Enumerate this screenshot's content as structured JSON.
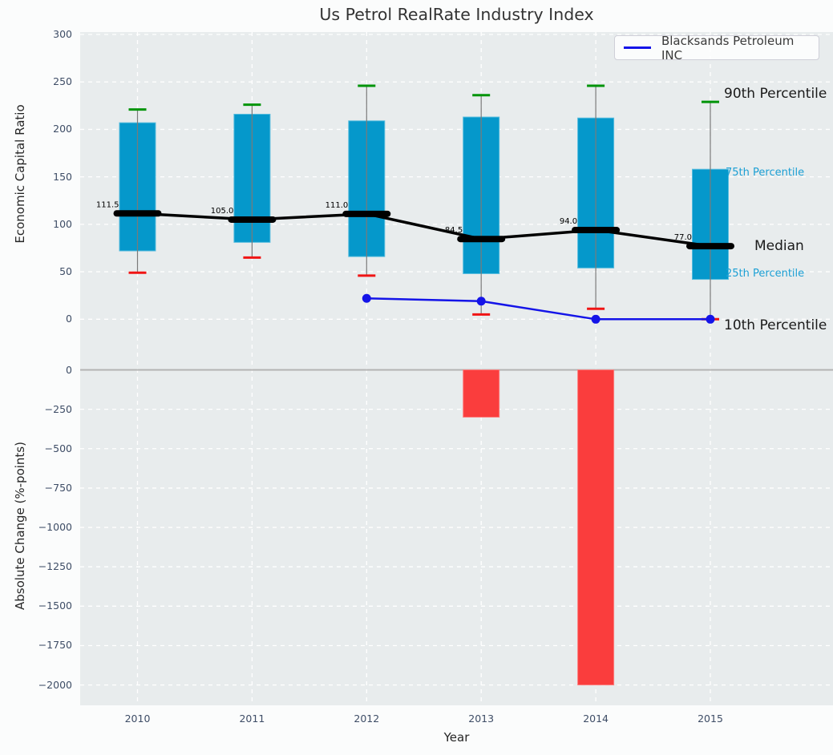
{
  "title": "Us Petrol RealRate Industry Index",
  "legend": {
    "label": "Blacksands Petroleum INC"
  },
  "annotations": {
    "p90": "90th Percentile",
    "p75": "75th Percentile",
    "median": "Median",
    "p25": "25th Percentile",
    "p10": "10th Percentile"
  },
  "colors": {
    "figure_bg": "#fbfcfc",
    "axes_bg": "#e8eced",
    "grid": "#ffffff",
    "tick_text": "#3e4d66",
    "box_fill": "#0598cb",
    "box_edge": "#56bcde",
    "median_marker": "#000000",
    "median_line": "#000000",
    "whisker": "#7a7a7a",
    "cap_high": "#009409",
    "cap_low": "#f01414",
    "company_line": "#1414e8",
    "bar_fill": "#fa3d3d",
    "bar_edge": "#fd7d7d",
    "zero_line": "#b3b3b3",
    "percentile_text": "#1b9fd4"
  },
  "chart_data": [
    {
      "type": "box",
      "title": "Us Petrol RealRate Industry Index",
      "ylabel": "Economic Capital Ratio",
      "ylim": [
        0,
        300
      ],
      "yticks": [
        300,
        250,
        200,
        150,
        100,
        50,
        0
      ],
      "grid": true,
      "legend_position": "upper right",
      "categories": [
        2010,
        2011,
        2012,
        2013,
        2014,
        2015
      ],
      "boxes": [
        {
          "year": 2010,
          "p90": 221,
          "p75": 207,
          "median": 111.5,
          "p25": 72,
          "p10": 49
        },
        {
          "year": 2011,
          "p90": 226,
          "p75": 216,
          "median": 105.0,
          "p25": 81,
          "p10": 65
        },
        {
          "year": 2012,
          "p90": 246,
          "p75": 209,
          "median": 111.0,
          "p25": 66,
          "p10": 46
        },
        {
          "year": 2013,
          "p90": 236,
          "p75": 213,
          "median": 84.5,
          "p25": 48,
          "p10": 5
        },
        {
          "year": 2014,
          "p90": 246,
          "p75": 212,
          "median": 94.0,
          "p25": 54,
          "p10": 11
        },
        {
          "year": 2015,
          "p90": 229,
          "p75": 158,
          "median": 77.0,
          "p25": 42,
          "p10": 0
        }
      ],
      "median_labels": [
        "111.5",
        "105.0",
        "111.0",
        "84.5",
        "94.0",
        "77.0"
      ],
      "series": [
        {
          "name": "Blacksands Petroleum INC",
          "x": [
            2012,
            2013,
            2014,
            2015
          ],
          "y": [
            22,
            19,
            0,
            0
          ]
        }
      ]
    },
    {
      "type": "bar",
      "ylabel": "Absolute Change (%-points)",
      "xlabel": "Year",
      "ylim": [
        -2000,
        0
      ],
      "yticks": [
        0,
        -250,
        -500,
        -750,
        -1000,
        -1250,
        -1500,
        -1750,
        -2000
      ],
      "grid": true,
      "categories": [
        2010,
        2011,
        2012,
        2013,
        2014,
        2015
      ],
      "values": [
        null,
        null,
        null,
        -300,
        -2000,
        null
      ]
    }
  ]
}
